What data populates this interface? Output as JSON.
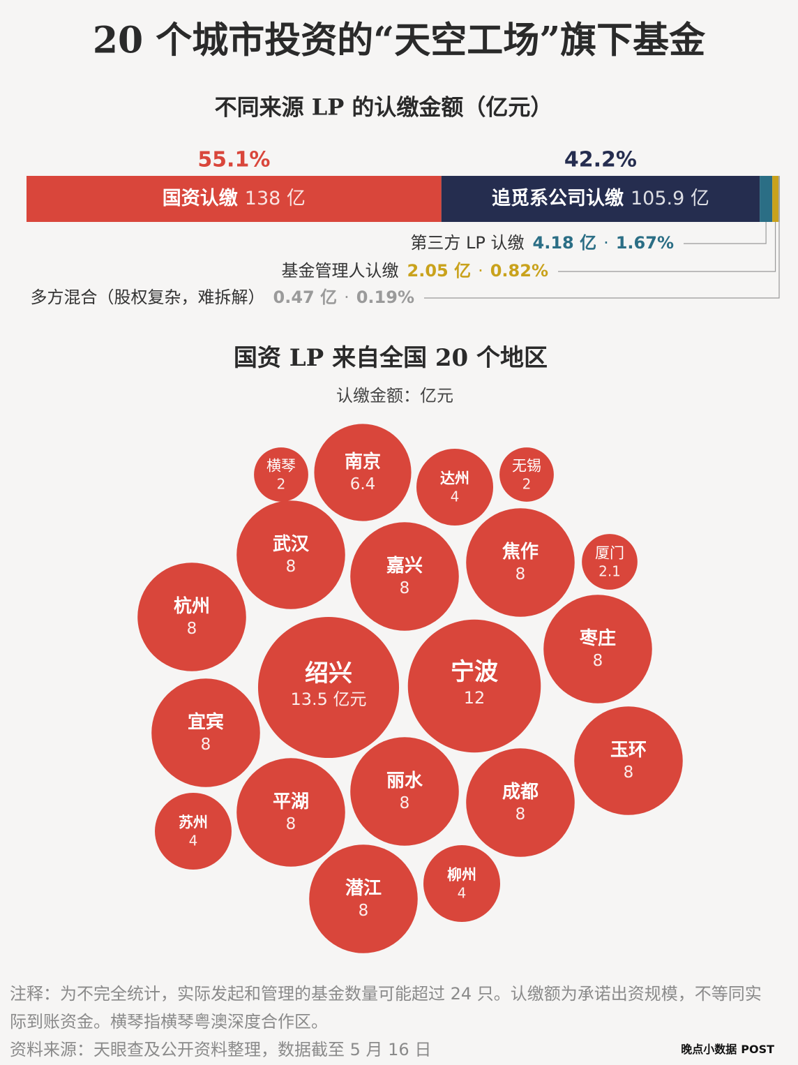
{
  "title": "20 个城市投资的“天空工场”旗下基金",
  "chart_data": [
    {
      "type": "stacked-bar",
      "title": "不同来源 LP 的认缴金额（亿元）",
      "separator": "·",
      "segments": [
        {
          "name": "国资认缴",
          "value": 138,
          "value_label": "138 亿",
          "share": 55.1,
          "share_label": "55.1%",
          "color": "#d9463b"
        },
        {
          "name": "追觅系公司认缴",
          "value": 105.9,
          "value_label": "105.9 亿",
          "share": 42.2,
          "share_label": "42.2%",
          "color": "#252d4f"
        },
        {
          "name": "第三方 LP 认缴",
          "value": 4.18,
          "value_label": "4.18 亿",
          "share": 1.67,
          "share_label": "1.67%",
          "color": "#2b6e85"
        },
        {
          "name": "基金管理人认缴",
          "value": 2.05,
          "value_label": "2.05 亿",
          "share": 0.82,
          "share_label": "0.82%",
          "color": "#c9a21c"
        },
        {
          "name": "多方混合（股权复杂，难拆解）",
          "value": 0.47,
          "value_label": "0.47 亿",
          "share": 0.19,
          "share_label": "0.19%",
          "color": "#a8a8a8"
        }
      ]
    },
    {
      "type": "bubble",
      "title": "国资 LP 来自全国 20 个地区",
      "subtitle": "认缴金额：亿元",
      "color": "#d9463b",
      "categories": [
        "横琴",
        "南京",
        "达州",
        "无锡",
        "武汉",
        "嘉兴",
        "焦作",
        "厦门",
        "杭州",
        "绍兴",
        "宁波",
        "枣庄",
        "宜宾",
        "玉环",
        "平湖",
        "丽水",
        "成都",
        "苏州",
        "潜江",
        "柳州"
      ],
      "values": [
        2,
        6.4,
        4,
        2,
        8,
        8,
        8,
        2.1,
        8,
        13.5,
        12,
        8,
        8,
        8,
        8,
        8,
        8,
        4,
        8,
        4
      ],
      "value_labels": [
        "2",
        "6.4",
        "4",
        "2",
        "8",
        "8",
        "8",
        "2.1",
        "8",
        "13.5 亿元",
        "12",
        "8",
        "8",
        "8",
        "8",
        "8",
        "8",
        "4",
        "8",
        "4"
      ]
    }
  ],
  "footer": {
    "note": "注释：为不完全统计，实际发起和管理的基金数量可能超过 24 只。认缴额为承诺出资规模，不等同实际到账资金。横琴指横琴粤澳深度合作区。",
    "source": "资料来源：天眼查及公开资料整理，数据截至 5 月 16 日",
    "logo": "晚点小数据",
    "logo_mark": "POST"
  }
}
